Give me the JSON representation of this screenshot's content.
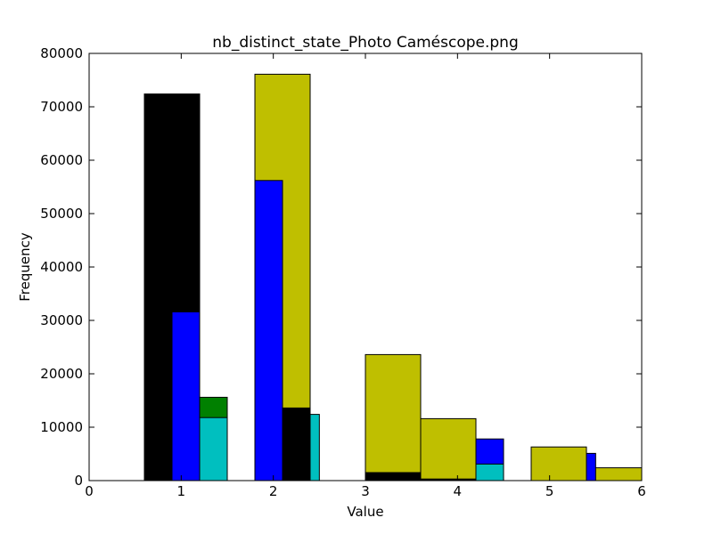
{
  "chart_data": {
    "type": "bar",
    "title": "nb_distinct_state_Photo Caméscope.png",
    "xlabel": "Value",
    "ylabel": "Frequency",
    "xlim": [
      0,
      6
    ],
    "ylim": [
      0,
      80000
    ],
    "xticks": [
      "0",
      "1",
      "2",
      "3",
      "4",
      "5",
      "6"
    ],
    "yticks": [
      "0",
      "10000",
      "20000",
      "30000",
      "40000",
      "50000",
      "60000",
      "70000",
      "80000"
    ],
    "grid": false,
    "legend": "none",
    "series": [
      {
        "color": "#bfbf00",
        "bars": [
          {
            "x0": 1.8,
            "x1": 2.4,
            "value": 76100
          },
          {
            "x0": 3.0,
            "x1": 3.6,
            "value": 23600
          },
          {
            "x0": 3.6,
            "x1": 4.2,
            "value": 11600
          },
          {
            "x0": 4.8,
            "x1": 5.4,
            "value": 6300
          },
          {
            "x0": 5.4,
            "x1": 6.0,
            "value": 2400
          }
        ]
      },
      {
        "color": "#000000",
        "bars": [
          {
            "x0": 0.6,
            "x1": 1.2,
            "value": 72400
          },
          {
            "x0": 2.1,
            "x1": 2.4,
            "value": 13600
          },
          {
            "x0": 3.0,
            "x1": 3.6,
            "value": 1500
          },
          {
            "x0": 3.6,
            "x1": 4.2,
            "value": 300
          }
        ]
      },
      {
        "color": "#0000ff",
        "bars": [
          {
            "x0": 0.9,
            "x1": 1.2,
            "value": 31600
          },
          {
            "x0": 1.8,
            "x1": 2.1,
            "value": 56200
          },
          {
            "x0": 4.2,
            "x1": 4.5,
            "value": 7800
          },
          {
            "x0": 5.4,
            "x1": 5.5,
            "value": 5100
          }
        ]
      },
      {
        "color": "#008000",
        "bars": [
          {
            "x0": 1.2,
            "x1": 1.5,
            "value": 15600
          }
        ]
      },
      {
        "color": "#00bfbf",
        "bars": [
          {
            "x0": 1.2,
            "x1": 1.5,
            "value": 11800
          },
          {
            "x0": 2.4,
            "x1": 2.5,
            "value": 12400
          },
          {
            "x0": 4.2,
            "x1": 4.5,
            "value": 3100
          }
        ]
      }
    ]
  }
}
